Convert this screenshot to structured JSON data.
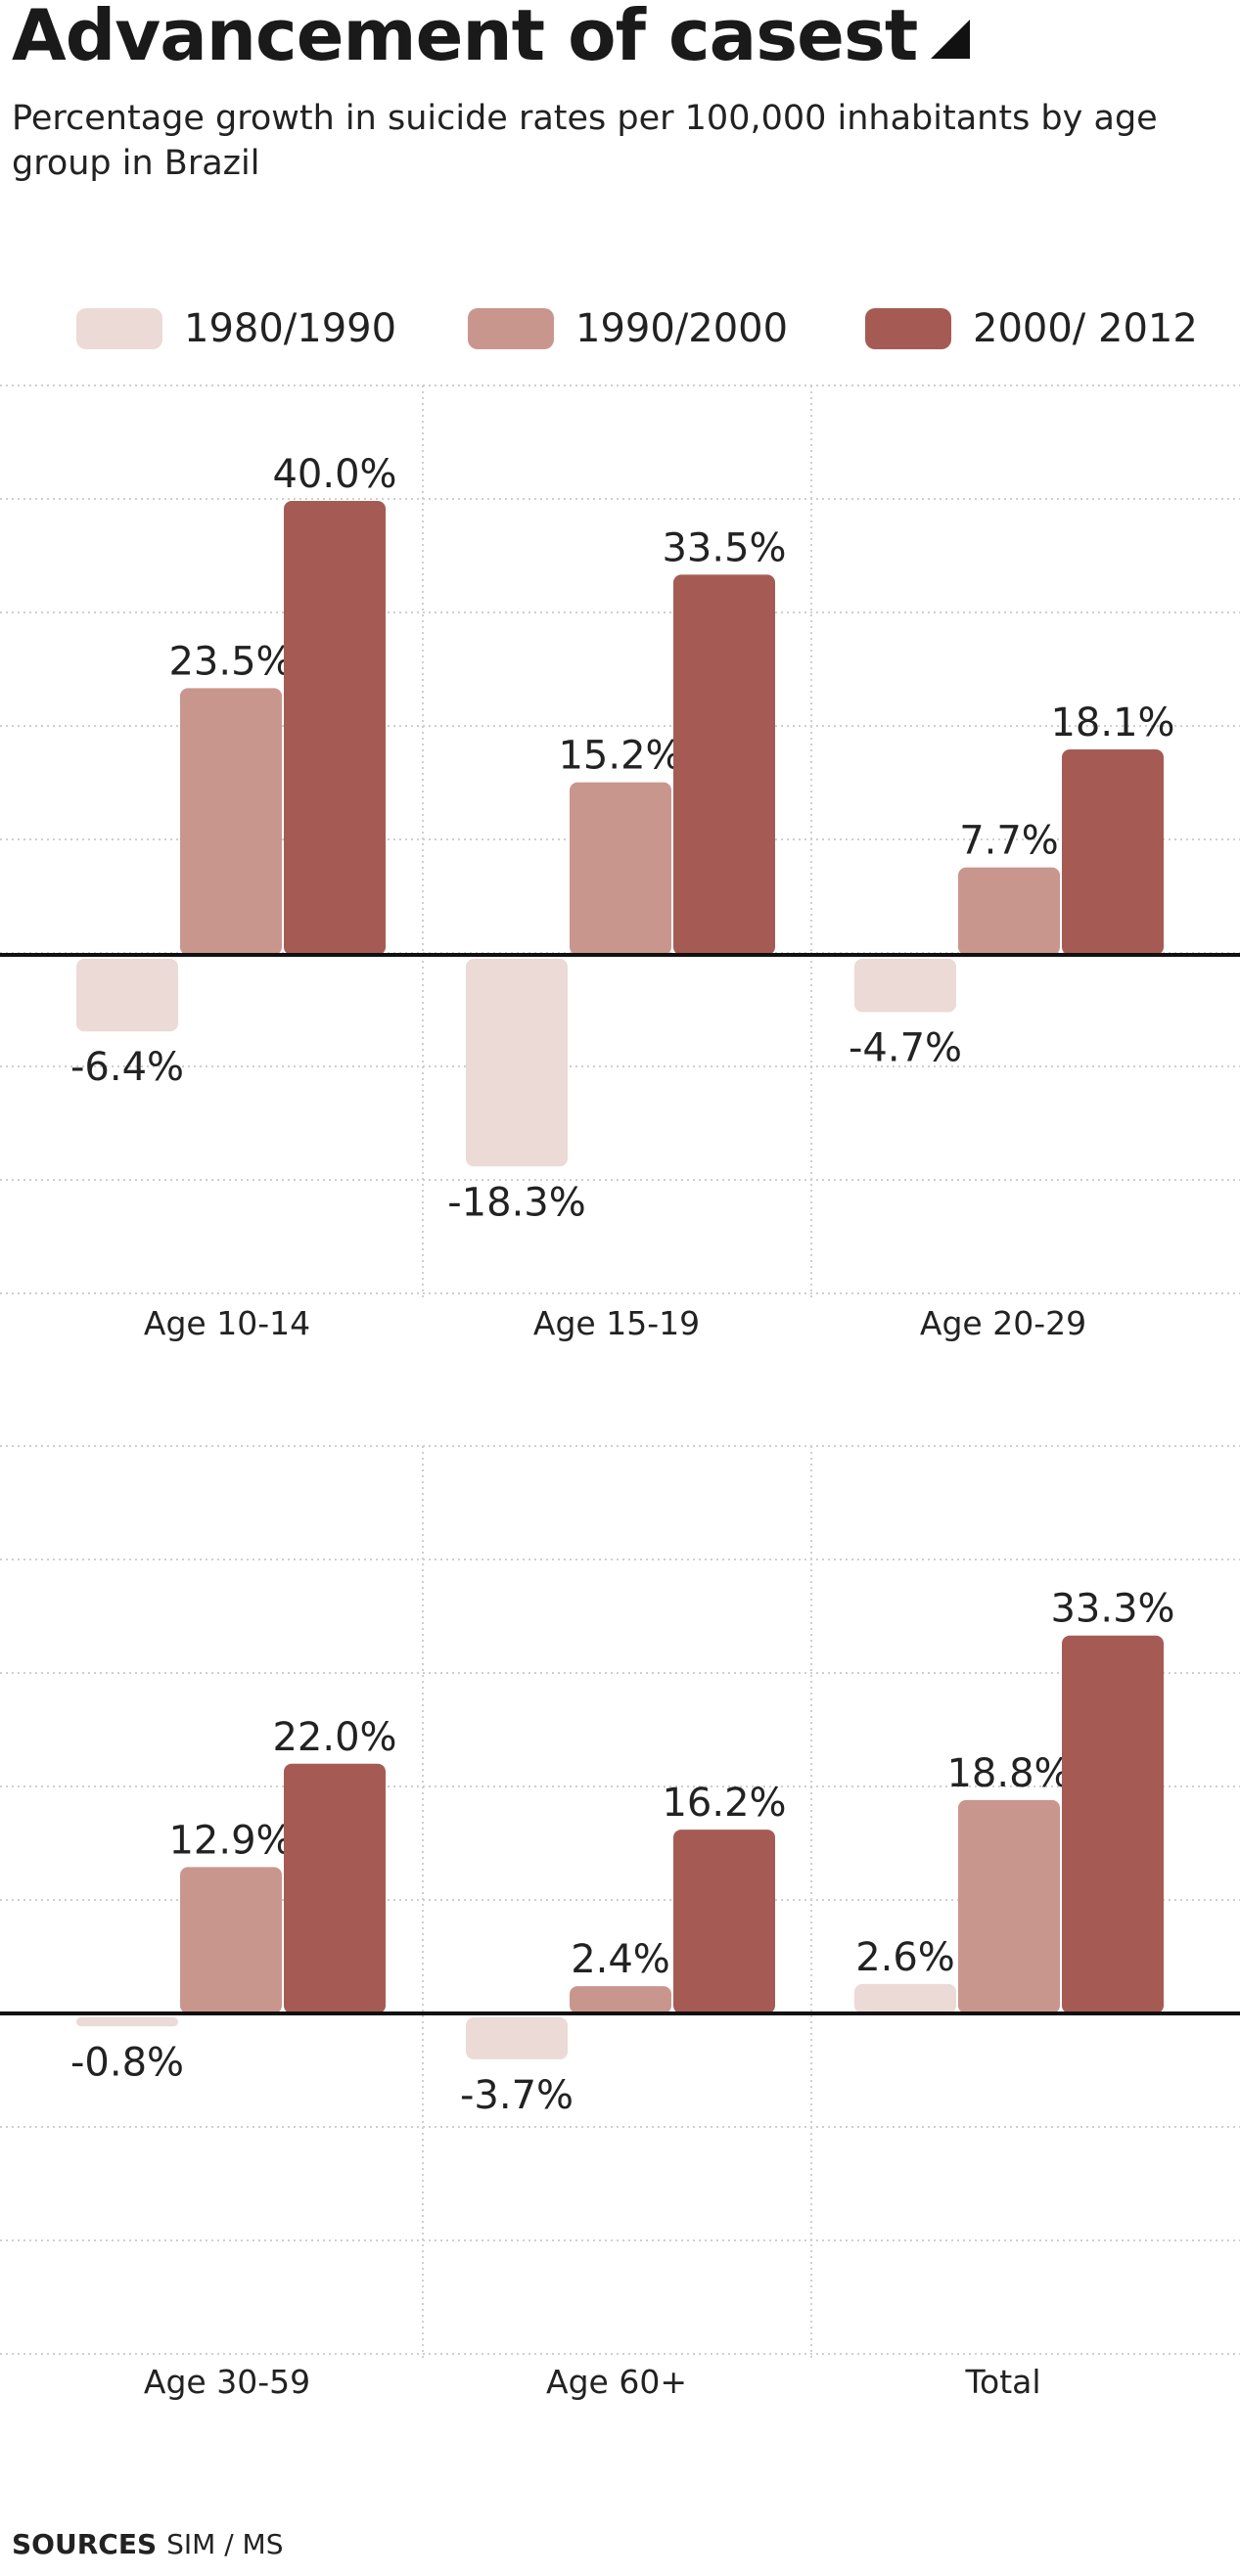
{
  "header": {
    "title": "Advancement of casest",
    "subtitle": "Percentage growth in suicide rates per 100,000 inhabitants by age group in Brazil"
  },
  "legend": [
    {
      "label": "1980/1990",
      "color": "#ecdad7"
    },
    {
      "label": "1990/2000",
      "color": "#c9968e"
    },
    {
      "label": "2000/ 2012",
      "color": "#a55b54"
    }
  ],
  "footer": {
    "sources_label": "SOURCES",
    "sources_value": "SIM / MS"
  },
  "chart_data": {
    "type": "bar",
    "grid": true,
    "legend_placement": "top",
    "series": [
      {
        "name": "1980/1990",
        "color": "#ecdad7"
      },
      {
        "name": "1990/2000",
        "color": "#c9968e"
      },
      {
        "name": "2000/ 2012",
        "color": "#a55b54"
      }
    ],
    "panels": [
      {
        "category": "Age 10-14",
        "values": [
          -6.4,
          23.5,
          40.0
        ],
        "labels": [
          "-6.4%",
          "23.5%",
          "40.0%"
        ]
      },
      {
        "category": "Age 15-19",
        "values": [
          -18.3,
          15.2,
          33.5
        ],
        "labels": [
          "-18.3%",
          "15.2%",
          "33.5%"
        ]
      },
      {
        "category": "Age 20-29",
        "values": [
          -4.7,
          7.7,
          18.1
        ],
        "labels": [
          "-4.7%",
          "7.7%",
          "18.1%"
        ]
      },
      {
        "category": "Age 30-59",
        "values": [
          -0.8,
          12.9,
          22.0
        ],
        "labels": [
          "-0.8%",
          "12.9%",
          "22.0%"
        ]
      },
      {
        "category": "Age 60+",
        "values": [
          -3.7,
          2.4,
          16.2
        ],
        "labels": [
          "-3.7%",
          "2.4%",
          "16.2%"
        ]
      },
      {
        "category": "Total",
        "values": [
          2.6,
          18.8,
          33.3
        ],
        "labels": [
          "2.6%",
          "18.8%",
          "33.3%"
        ]
      }
    ],
    "ylim": [
      -30,
      50
    ],
    "grid_step": 10
  }
}
